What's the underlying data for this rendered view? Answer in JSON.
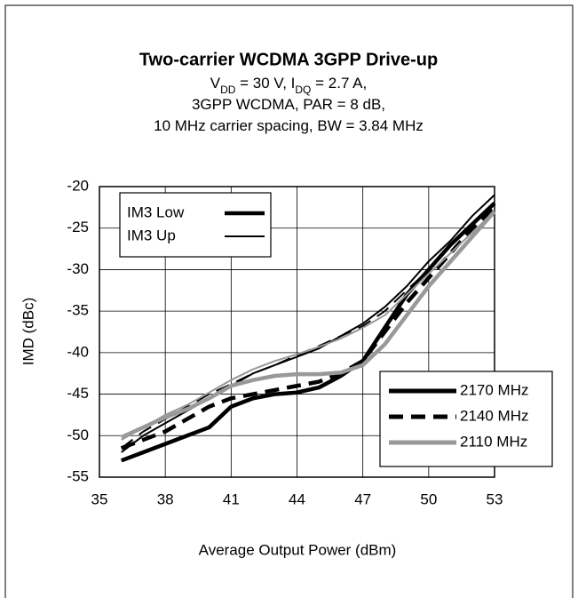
{
  "chart_data": {
    "type": "line",
    "title": "Two-carrier WCDMA 3GPP Drive-up",
    "subtitle": [
      [
        {
          "text": "V"
        },
        {
          "text": "DD",
          "sub": true
        },
        {
          "text": " = 30 V, I"
        },
        {
          "text": "DQ",
          "sub": true
        },
        {
          "text": " = 2.7 A,"
        }
      ],
      [
        {
          "text": "3GPP WCDMA, PAR = 8 dB,"
        }
      ],
      [
        {
          "text": "10 MHz carrier spacing, BW = 3.84 MHz"
        }
      ]
    ],
    "x_label": "Average Output Power (dBm)",
    "y_label": "IMD (dBc)",
    "xlim": [
      35,
      53
    ],
    "xticks": [
      35,
      38,
      41,
      44,
      47,
      50,
      53
    ],
    "ylim": [
      -55,
      -20
    ],
    "yticks": [
      -55,
      -50,
      -45,
      -40,
      -35,
      -30,
      -25,
      -20
    ],
    "grid": true,
    "x": [
      36,
      37,
      38,
      39,
      40,
      41,
      42,
      43,
      44,
      45,
      46,
      47,
      48,
      49,
      50,
      51,
      52,
      53
    ],
    "series": [
      {
        "product": "IM3 Low",
        "frequency": "2170 MHz",
        "color": "#000000",
        "width": 4.5,
        "dash": "solid",
        "values": [
          -53,
          -52,
          -51,
          -50,
          -49,
          -46.5,
          -45.5,
          -45,
          -44.8,
          -44.2,
          -42.8,
          -41,
          -37,
          -33,
          -30,
          -27,
          -24.5,
          -22
        ]
      },
      {
        "product": "IM3 Up",
        "frequency": "2170 MHz",
        "color": "#000000",
        "width": 2,
        "dash": "solid",
        "values": [
          -52,
          -50,
          -48.5,
          -47,
          -45.5,
          -44,
          -42.5,
          -41.5,
          -40.5,
          -39.5,
          -38,
          -36.5,
          -34.5,
          -32,
          -29,
          -26.5,
          -23.5,
          -21
        ]
      },
      {
        "product": "IM3 Low",
        "frequency": "2140 MHz",
        "color": "#000000",
        "width": 4.5,
        "dash": "dashed",
        "values": [
          -51.5,
          -50.5,
          -49.5,
          -48,
          -46.5,
          -45.5,
          -45,
          -44.5,
          -44,
          -43.5,
          -42.5,
          -41,
          -37.5,
          -34,
          -31,
          -28,
          -25,
          -22.5
        ]
      },
      {
        "product": "IM3 Up",
        "frequency": "2140 MHz",
        "color": "#000000",
        "width": 2,
        "dash": "dashed",
        "values": [
          -51.5,
          -49.5,
          -48,
          -46.5,
          -45,
          -43.8,
          -42.5,
          -41.5,
          -40.3,
          -39.2,
          -38,
          -36.8,
          -35,
          -32.5,
          -30,
          -27,
          -24.5,
          -22
        ]
      },
      {
        "product": "IM3 Low",
        "frequency": "2110 MHz",
        "color": "#999999",
        "width": 4.5,
        "dash": "solid",
        "values": [
          -50.2,
          -49,
          -47.8,
          -46.8,
          -45.5,
          -44,
          -43.3,
          -42.8,
          -42.6,
          -42.6,
          -42.4,
          -41.5,
          -39,
          -35.5,
          -32,
          -29,
          -26,
          -23
        ]
      },
      {
        "product": "IM3 Up",
        "frequency": "2110 MHz",
        "color": "#999999",
        "width": 2,
        "dash": "solid",
        "values": [
          -50.5,
          -49,
          -47.5,
          -46.3,
          -44.8,
          -43.3,
          -42,
          -41,
          -40.2,
          -39.3,
          -38.3,
          -37,
          -35.5,
          -33,
          -30.5,
          -28,
          -25.5,
          -23
        ]
      }
    ]
  }
}
